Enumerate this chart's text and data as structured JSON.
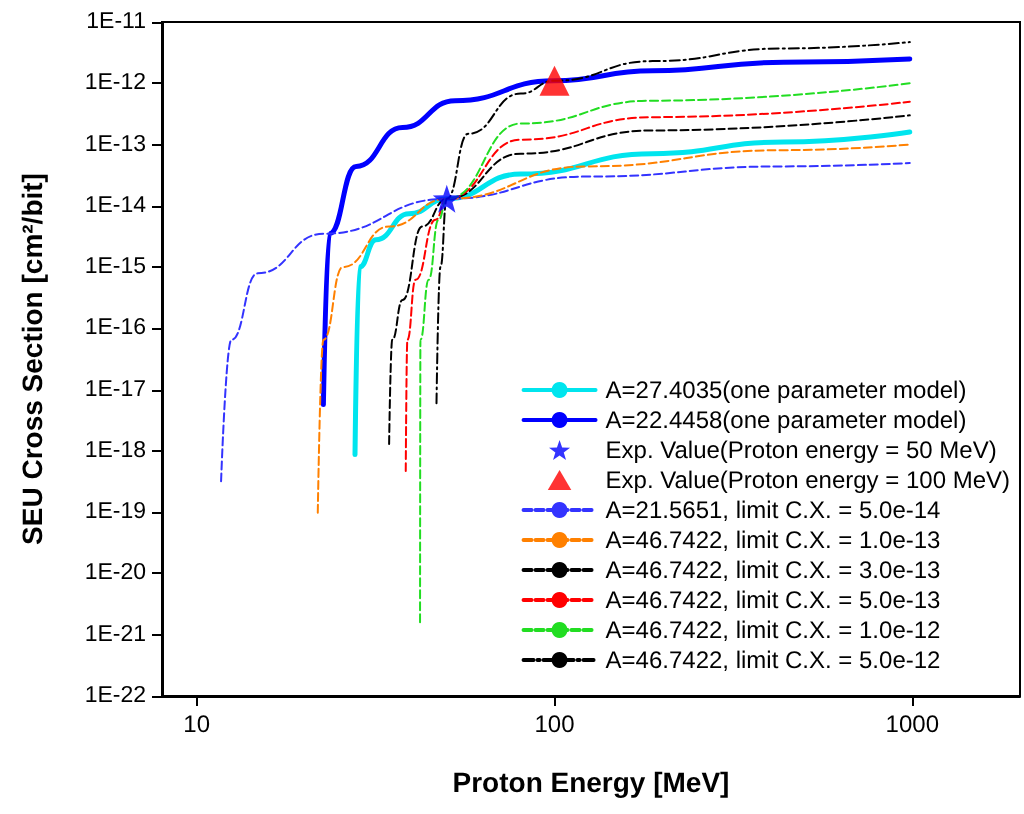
{
  "chart_data": {
    "type": "line",
    "xlabel": "Proton Energy [MeV]",
    "ylabel": "SEU Cross Section [cm²/bit]",
    "log": "xy",
    "xlim": [
      8,
      2000
    ],
    "xticks": [
      10,
      100,
      1000
    ],
    "ylim": [
      1e-22,
      1e-11
    ],
    "yticks": [
      {
        "value": 1e-22,
        "label": "1E-22"
      },
      {
        "value": 1e-21,
        "label": "1E-21"
      },
      {
        "value": 1e-20,
        "label": "1E-20"
      },
      {
        "value": 1e-19,
        "label": "1E-19"
      },
      {
        "value": 1e-18,
        "label": "1E-18"
      },
      {
        "value": 1e-17,
        "label": "1E-17"
      },
      {
        "value": 1e-16,
        "label": "1E-16"
      },
      {
        "value": 1e-15,
        "label": "1E-15"
      },
      {
        "value": 1e-14,
        "label": "1E-14"
      },
      {
        "value": 1e-13,
        "label": "1E-13"
      },
      {
        "value": 1e-12,
        "label": "1E-12"
      },
      {
        "value": 1e-11,
        "label": "1E-11"
      }
    ],
    "grid": false,
    "legend": "bottom right",
    "marker": "none",
    "series": [
      {
        "name": "A=27.4035(one parameter model)",
        "color": "#00e5ee",
        "line_style": "solid",
        "x": [
          27.7,
          28.5,
          31.7,
          39.2,
          50,
          80.5,
          188,
          437,
          984
        ],
        "values": [
          8.7e-19,
          1e-15,
          2.8e-15,
          7.4e-15,
          1.3e-14,
          3.3e-14,
          7.1e-14,
          1.1e-13,
          1.6e-13
        ]
      },
      {
        "name": "A=22.4458(one parameter model)",
        "color": "#0000ff",
        "line_style": "solid",
        "x": [
          22.6,
          23.5,
          27.9,
          37.6,
          52.7,
          99.5,
          188,
          437,
          984
        ],
        "values": [
          5.7e-18,
          3.5e-15,
          4.4e-14,
          1.9e-13,
          5.2e-13,
          1.1e-12,
          1.6e-12,
          2.2e-12,
          2.5e-12
        ]
      },
      {
        "name": "Exp. Value(Proton energy = 50 MeV)",
        "type": "scatter",
        "marker": "star",
        "color": "#0000ff",
        "x": [
          50
        ],
        "values": [
          1.3e-14
        ]
      },
      {
        "name": "Exp. Value(Proton energy = 100 MeV)",
        "type": "scatter",
        "marker": "triangle",
        "color": "#ff0000",
        "x": [
          100
        ],
        "values": [
          1.1e-12
        ]
      },
      {
        "name": "A=21.5651, limit C.X. = 5.0e-14",
        "color": "#3333ff",
        "line_style": "dashed",
        "x": [
          11.7,
          12.5,
          14.8,
          22.6,
          50,
          123,
          437,
          984
        ],
        "values": [
          3.2e-19,
          6.5e-17,
          7.9e-16,
          3.5e-15,
          1.3e-14,
          3e-14,
          4.4e-14,
          5e-14
        ]
      },
      {
        "name": "A=46.7422, limit C.X. = 1.0e-13",
        "color": "#ff8000",
        "line_style": "dashed",
        "x": [
          21.8,
          22.6,
          25.6,
          34.5,
          50,
          123,
          437,
          984
        ],
        "values": [
          9.8e-20,
          6.5e-17,
          1e-15,
          4.6e-15,
          1.3e-14,
          4.4e-14,
          8.1e-14,
          1e-13
        ]
      },
      {
        "name": "A=46.7422, limit C.X. = 3.0e-13",
        "color": "#000000",
        "line_style": "dashed",
        "x": [
          34.5,
          35.2,
          37.6,
          42.7,
          50,
          80.5,
          188,
          984
        ],
        "values": [
          1.3e-18,
          6.5e-17,
          2.9e-16,
          4.6e-15,
          1.3e-14,
          7.1e-14,
          1.7e-13,
          3e-13
        ]
      },
      {
        "name": "A=46.7422, limit C.X. = 5.0e-13",
        "color": "#ff0000",
        "line_style": "dashed",
        "x": [
          38.4,
          38.8,
          40.9,
          46.5,
          50,
          80.5,
          188,
          984
        ],
        "values": [
          4.7e-19,
          6.5e-17,
          6.2e-16,
          5.9e-15,
          1.3e-14,
          1.2e-13,
          2.8e-13,
          5e-13
        ]
      },
      {
        "name": "A=46.7422, limit C.X. = 1.0e-12",
        "color": "#22dd22",
        "line_style": "dashed",
        "x": [
          42.1,
          42.2,
          44.5,
          47.4,
          50,
          80.5,
          188,
          984
        ],
        "values": [
          1.6e-21,
          6.5e-17,
          6.2e-16,
          5.9e-15,
          1.3e-14,
          2.2e-13,
          5.2e-13,
          1e-12
        ]
      },
      {
        "name": "A=46.7422, limit C.X. = 5.0e-12",
        "color": "#000000",
        "line_style": "dotted",
        "x": [
          46.8,
          48,
          50,
          57.4,
          80.5,
          100,
          188,
          437,
          984
        ],
        "values": [
          6e-18,
          1e-15,
          1.3e-14,
          1.5e-13,
          6.8e-13,
          1.1e-12,
          2.3e-12,
          3.7e-12,
          4.7e-12
        ]
      }
    ]
  }
}
